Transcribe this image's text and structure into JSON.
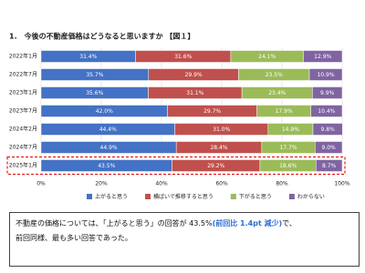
{
  "heading": "1.　今後の不動産価格はどうなると思いますか 【図１】",
  "chart_data": {
    "type": "stacked-bar-horizontal",
    "categories": [
      "2022年1月",
      "2022年7月",
      "2023年1月",
      "2023年7月",
      "2024年2月",
      "2024年7月",
      "2025年1月"
    ],
    "series": [
      {
        "name": "上がると思う",
        "color": "#4472c4",
        "values": [
          31.4,
          35.7,
          35.6,
          42.0,
          44.4,
          44.9,
          43.5
        ],
        "value_labels": [
          "31.4%",
          "35.7%",
          "35.6%",
          "42.0%",
          "44.4%",
          "44.9%",
          "43.5%"
        ]
      },
      {
        "name": "横ばいで推移すると思う",
        "color": "#c0504d",
        "values": [
          31.6,
          29.9,
          31.1,
          29.7,
          31.0,
          28.4,
          29.2
        ],
        "value_labels": [
          "31.6%",
          "29.9%",
          "31.1%",
          "29.7%",
          "31.0%",
          "28.4%",
          "29.2%"
        ]
      },
      {
        "name": "下がると思う",
        "color": "#9bbb59",
        "values": [
          24.1,
          23.5,
          23.4,
          17.9,
          14.9,
          17.7,
          18.6
        ],
        "value_labels": [
          "24.1%",
          "23.5%",
          "23.4%",
          "17.9%",
          "14.9%",
          "17.7%",
          "18.6%"
        ]
      },
      {
        "name": "わからない",
        "color": "#8064a2",
        "values": [
          12.9,
          10.9,
          9.9,
          10.4,
          9.8,
          9.0,
          8.7
        ],
        "value_labels": [
          "12.9%",
          "10.9%",
          "9.9%",
          "10.4%",
          "9.8%",
          "9.0%",
          "8.7%"
        ]
      }
    ],
    "xlim": [
      0,
      100
    ],
    "xticks": [
      {
        "value": 0,
        "label": "0%"
      },
      {
        "value": 20,
        "label": "20%"
      },
      {
        "value": 40,
        "label": "40%"
      },
      {
        "value": 60,
        "label": "60%"
      },
      {
        "value": 80,
        "label": "80%"
      },
      {
        "value": 100,
        "label": "100%"
      }
    ],
    "grid": true,
    "legend": "bottom"
  },
  "summary": {
    "line1": [
      "不動産の価格については、「上がると思う」の回答が 43.5%",
      "(前回比 1.4pt 減少)",
      "で、"
    ],
    "line2": "前回同様、最も多い回答であった。"
  }
}
